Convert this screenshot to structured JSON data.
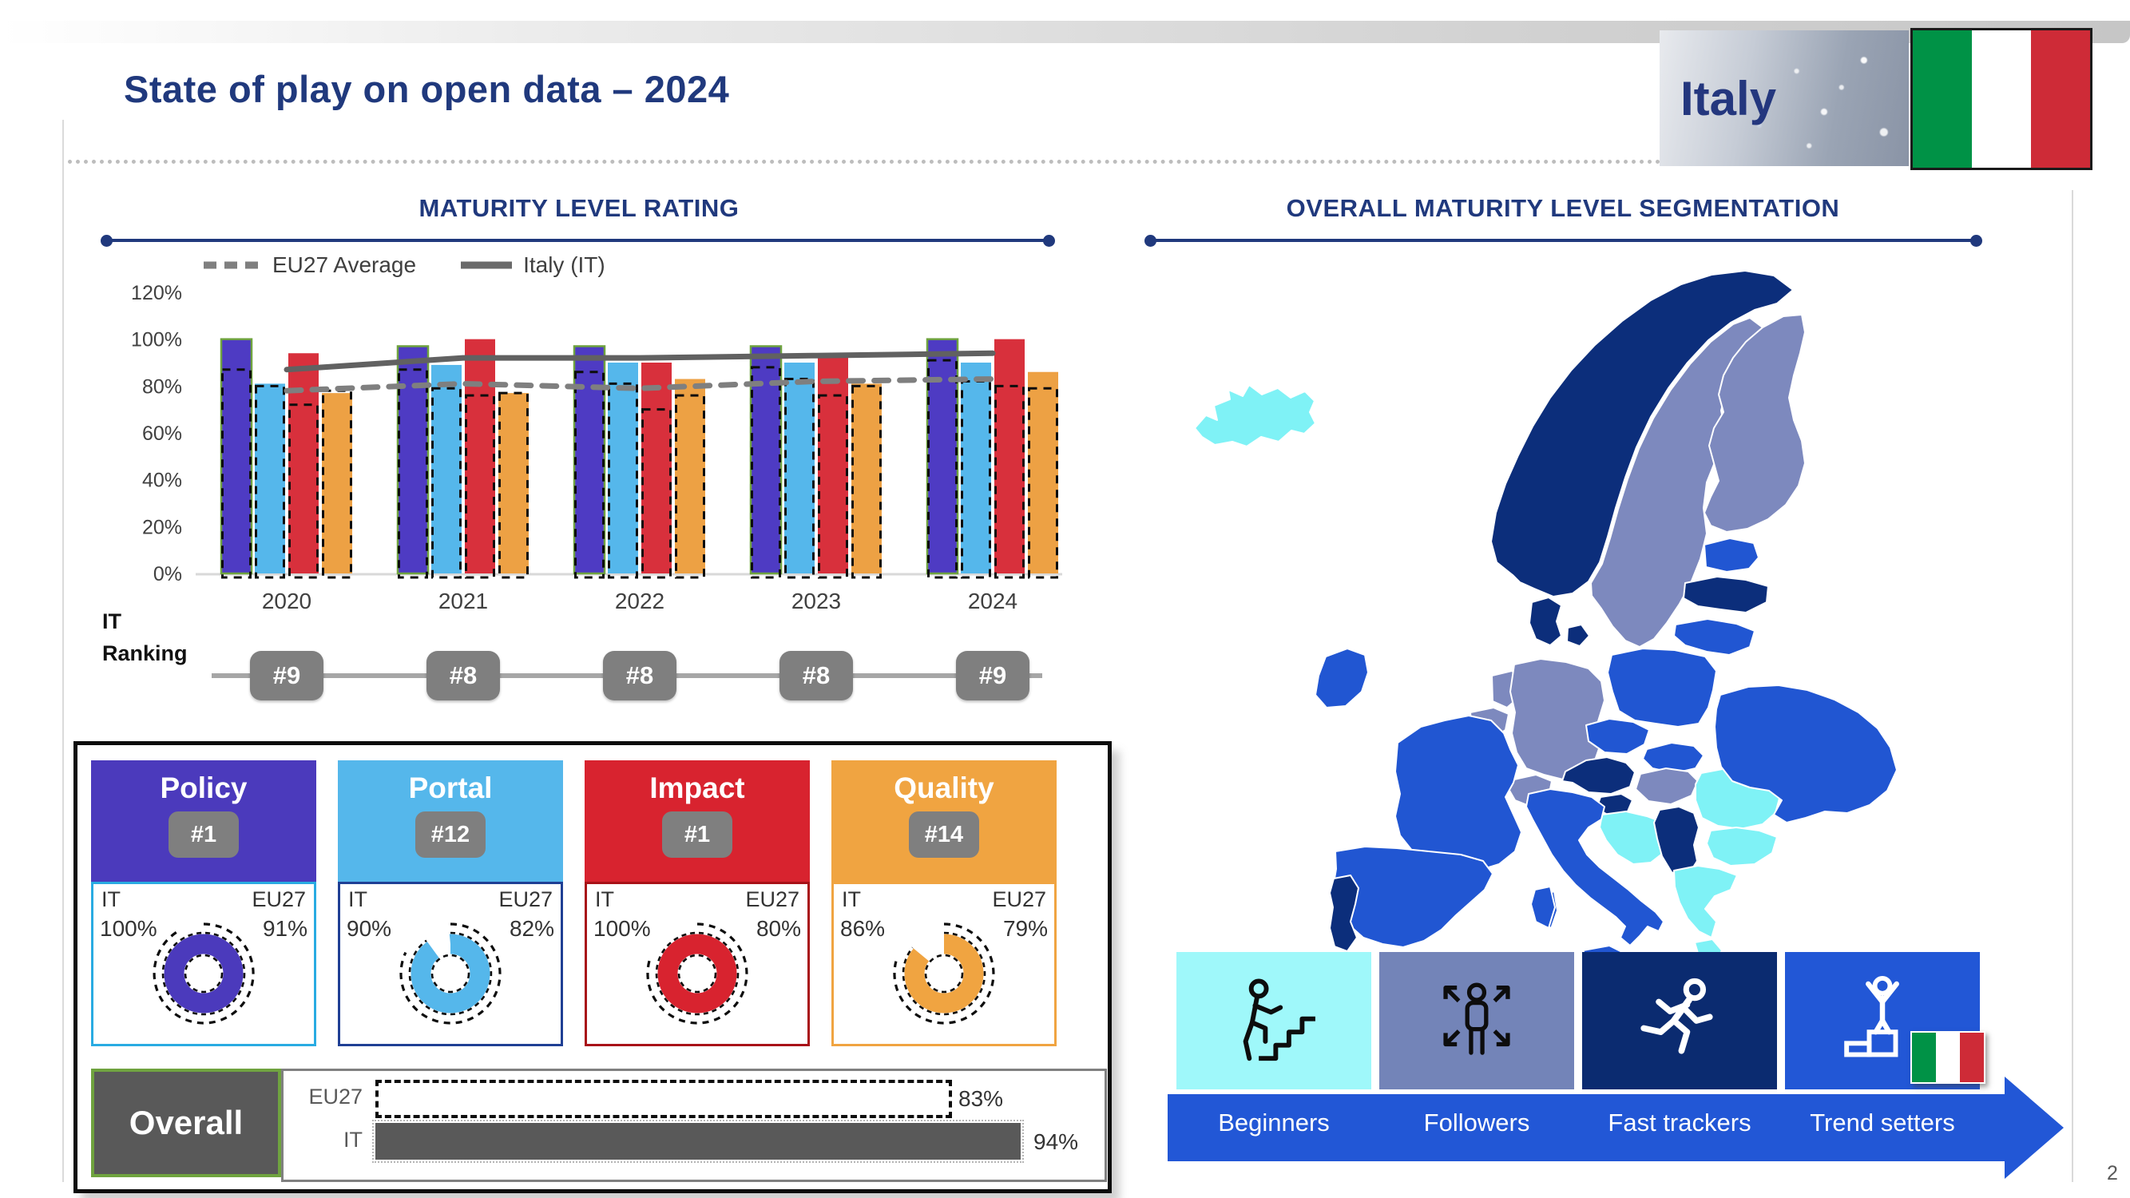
{
  "page": {
    "title": "State of play on open data – 2024",
    "country_label": "Italy",
    "page_number": "2",
    "flag_colors": {
      "green": "#009246",
      "white": "#ffffff",
      "red": "#ce2b37"
    }
  },
  "left": {
    "section_title": "MATURITY LEVEL RATING",
    "legend": [
      {
        "label": "EU27 Average",
        "style": "dashed",
        "color": "#7f7f7f"
      },
      {
        "label": "Italy (IT)",
        "style": "solid",
        "color": "#6a6a6a"
      }
    ],
    "ranking": {
      "label_line1": "IT",
      "label_line2": "Ranking",
      "badges": [
        "#9",
        "#8",
        "#8",
        "#8",
        "#9"
      ]
    },
    "cards": [
      {
        "title": "Policy",
        "rank": "#1",
        "it_label": "IT",
        "eu_label": "EU27",
        "it_display": "100%",
        "eu_display": "91%",
        "it_value": 100,
        "eu_value": 91,
        "header_color": "#4b3abc",
        "border_color": "#29abe2"
      },
      {
        "title": "Portal",
        "rank": "#12",
        "it_label": "IT",
        "eu_label": "EU27",
        "it_display": "90%",
        "eu_display": "82%",
        "it_value": 90,
        "eu_value": 82,
        "header_color": "#55b7eb",
        "border_color": "#1f3f94"
      },
      {
        "title": "Impact",
        "rank": "#1",
        "it_label": "IT",
        "eu_label": "EU27",
        "it_display": "100%",
        "eu_display": "80%",
        "it_value": 100,
        "eu_value": 80,
        "header_color": "#d8232f",
        "border_color": "#a81218"
      },
      {
        "title": "Quality",
        "rank": "#14",
        "it_label": "IT",
        "eu_label": "EU27",
        "it_display": "86%",
        "eu_display": "79%",
        "it_value": 86,
        "eu_value": 79,
        "header_color": "#f0a441",
        "border_color": "#f0a441"
      }
    ],
    "overall": {
      "label": "Overall",
      "rows": [
        {
          "label": "EU27",
          "value": 83,
          "display": "83%",
          "style": "dashed"
        },
        {
          "label": "IT",
          "value": 94,
          "display": "94%",
          "style": "solid"
        }
      ]
    }
  },
  "right": {
    "section_title": "OVERALL MATURITY LEVEL SEGMENTATION",
    "segments": [
      {
        "label": "Beginners",
        "color": "#9ff8fa",
        "icon": "stairs-person-icon",
        "icon_color": "#0d0d0d"
      },
      {
        "label": "Followers",
        "color": "#7384b8",
        "icon": "measure-person-icon",
        "icon_color": "#0d0d0d"
      },
      {
        "label": "Fast trackers",
        "color": "#0b2b70",
        "icon": "runner-icon",
        "icon_color": "#ffffff"
      },
      {
        "label": "Trend setters",
        "color": "#2257d6",
        "icon": "podium-person-icon",
        "icon_color": "#ffffff",
        "flag": "italy"
      }
    ],
    "category_colors": {
      "beginners": "#7ff2f6",
      "followers": "#7d89be",
      "fast-trackers": "#0c2e7b",
      "trend-setters": "#2156d2"
    },
    "country_categories": {
      "iceland": "beginners",
      "norway": "fast-trackers",
      "sweden": "followers",
      "finland": "followers",
      "estonia": "trend-setters",
      "latvia": "fast-trackers",
      "lithuania": "trend-setters",
      "denmark": "fast-trackers",
      "denmark-island": "fast-trackers",
      "ireland": "trend-setters",
      "netherlands": "followers",
      "belgium": "followers",
      "germany": "followers",
      "poland": "trend-setters",
      "czechia": "trend-setters",
      "slovakia": "trend-setters",
      "austria": "fast-trackers",
      "switzerland": "followers",
      "hungary": "followers",
      "slovenia": "fast-trackers",
      "croatia-bosnia": "beginners",
      "serbia": "fast-trackers",
      "romania": "beginners",
      "bulgaria": "beginners",
      "greece": "beginners",
      "peloponnese": "beginners",
      "crete": "beginners",
      "ukraine": "trend-setters",
      "france": "trend-setters",
      "corsica": "trend-setters",
      "spain": "trend-setters",
      "portugal": "fast-trackers",
      "italy": "trend-setters",
      "sicily": "trend-setters",
      "sardinia": "trend-setters",
      "cyprus": "trend-setters"
    }
  },
  "chart_data": [
    {
      "id": "maturity_rating",
      "type": "bar",
      "title": "MATURITY LEVEL RATING",
      "categories": [
        "2020",
        "2021",
        "2022",
        "2023",
        "2024"
      ],
      "yticks": [
        "0%",
        "20%",
        "40%",
        "60%",
        "80%",
        "100%",
        "120%"
      ],
      "ylim": [
        0,
        120
      ],
      "grid": false,
      "legend_position": "top-left",
      "series": [
        {
          "name": "Policy (IT)",
          "color": "#4e3bc3",
          "values": [
            100,
            97,
            97,
            97,
            100
          ]
        },
        {
          "name": "Portal (IT)",
          "color": "#55b7eb",
          "values": [
            81,
            89,
            90,
            90,
            90
          ]
        },
        {
          "name": "Impact (IT)",
          "color": "#d8303c",
          "values": [
            94,
            100,
            90,
            93,
            100
          ]
        },
        {
          "name": "Quality (IT)",
          "color": "#eda144",
          "values": [
            77,
            77,
            83,
            81,
            86
          ]
        }
      ],
      "eu27_outline_series": [
        {
          "name": "Policy (EU27)",
          "values": [
            87,
            87,
            86,
            88,
            91
          ]
        },
        {
          "name": "Portal (EU27)",
          "values": [
            80,
            79,
            81,
            83,
            82
          ]
        },
        {
          "name": "Impact (EU27)",
          "values": [
            72,
            76,
            70,
            76,
            80
          ]
        },
        {
          "name": "Quality (EU27)",
          "values": [
            78,
            77,
            76,
            80,
            79
          ]
        }
      ],
      "lines": [
        {
          "name": "EU27 Average",
          "style": "dashed",
          "color": "#7f7f7f",
          "values": [
            78,
            81,
            79,
            82,
            83
          ]
        },
        {
          "name": "Italy (IT)",
          "style": "solid",
          "color": "#616161",
          "values": [
            87,
            92,
            92,
            93,
            94
          ]
        }
      ],
      "it_ranking": [
        "#9",
        "#8",
        "#8",
        "#8",
        "#9"
      ]
    },
    {
      "id": "dimension_donuts",
      "type": "pie",
      "items": [
        {
          "label": "Policy",
          "it": 100,
          "eu27": 91
        },
        {
          "label": "Portal",
          "it": 90,
          "eu27": 82
        },
        {
          "label": "Impact",
          "it": 100,
          "eu27": 80
        },
        {
          "label": "Quality",
          "it": 86,
          "eu27": 79
        }
      ]
    },
    {
      "id": "overall_bars",
      "type": "bar",
      "categories": [
        "EU27",
        "IT"
      ],
      "values": [
        83,
        94
      ],
      "title": "Overall"
    }
  ]
}
